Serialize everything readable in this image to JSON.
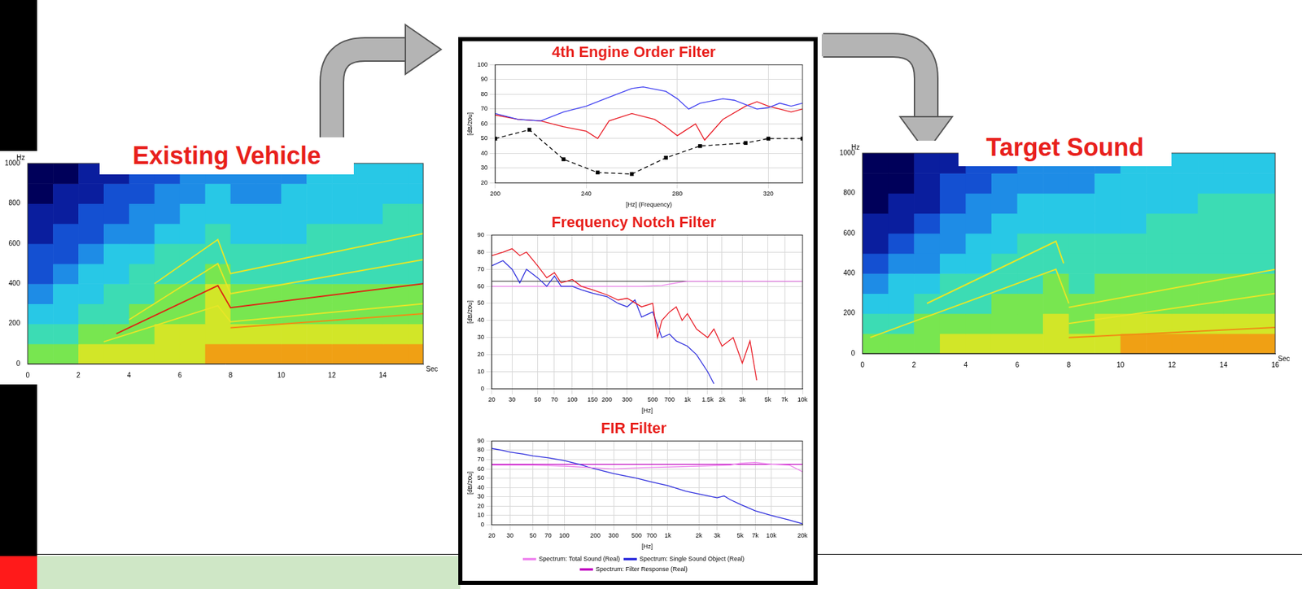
{
  "chart_data": [
    {
      "type": "spectrogram",
      "title": "Existing Vehicle",
      "xlabel": "Sec",
      "ylabel": "Hz",
      "xlim": [
        0,
        15.6
      ],
      "xticks": [
        0,
        2,
        4,
        6,
        8,
        10,
        12,
        14
      ],
      "ylim": [
        0,
        1000
      ],
      "yticks": [
        0,
        200,
        400,
        600,
        800,
        1000
      ],
      "grid": false,
      "time_bins": [
        0,
        1,
        2,
        3,
        4,
        5,
        6,
        7,
        8,
        9,
        10,
        11,
        12,
        13,
        14,
        15,
        16
      ],
      "freq_bins": [
        0,
        100,
        200,
        300,
        400,
        500,
        600,
        700,
        800,
        900,
        1000
      ],
      "zlim": [
        0,
        9
      ],
      "levels": [
        [
          6,
          6,
          7,
          7,
          7,
          7,
          7,
          8,
          8,
          8,
          8,
          8,
          8,
          8,
          8,
          8
        ],
        [
          5,
          5,
          6,
          6,
          6,
          7,
          7,
          7,
          7,
          7,
          7,
          7,
          7,
          7,
          7,
          7
        ],
        [
          4,
          4,
          5,
          5,
          6,
          6,
          6,
          7,
          6,
          6,
          6,
          6,
          6,
          6,
          6,
          6
        ],
        [
          3,
          4,
          4,
          5,
          5,
          6,
          6,
          7,
          6,
          6,
          6,
          6,
          6,
          6,
          6,
          6
        ],
        [
          2,
          3,
          4,
          4,
          5,
          5,
          5,
          6,
          5,
          5,
          5,
          5,
          5,
          5,
          5,
          5
        ],
        [
          2,
          2,
          3,
          4,
          4,
          5,
          5,
          5,
          5,
          5,
          5,
          5,
          5,
          5,
          5,
          5
        ],
        [
          1,
          2,
          2,
          3,
          3,
          4,
          4,
          5,
          4,
          4,
          4,
          5,
          5,
          5,
          5,
          5
        ],
        [
          1,
          1,
          2,
          2,
          3,
          3,
          4,
          4,
          4,
          4,
          4,
          4,
          4,
          4,
          5,
          5
        ],
        [
          0,
          1,
          1,
          2,
          2,
          3,
          3,
          4,
          3,
          3,
          4,
          4,
          4,
          4,
          4,
          4
        ],
        [
          0,
          0,
          1,
          1,
          2,
          2,
          3,
          3,
          3,
          3,
          3,
          4,
          4,
          4,
          4,
          4
        ]
      ],
      "series": [
        {
          "color": "#dc2814",
          "x": [
            3.5,
            7.5,
            8,
            15.6
          ],
          "values": [
            150,
            390,
            280,
            400
          ]
        },
        {
          "color": "#e6e628",
          "x": [
            3,
            7.5,
            8,
            15.6
          ],
          "values": [
            110,
            290,
            210,
            300
          ]
        },
        {
          "color": "#e6e628",
          "x": [
            4,
            7.5,
            8,
            15.6
          ],
          "values": [
            220,
            500,
            350,
            520
          ]
        },
        {
          "color": "#e6e628",
          "x": [
            5,
            7.5,
            8,
            15.6
          ],
          "values": [
            400,
            620,
            450,
            650
          ]
        },
        {
          "color": "#f08c14",
          "x": [
            8,
            15.6
          ],
          "values": [
            180,
            250
          ]
        }
      ]
    },
    {
      "type": "line",
      "title": "4th Engine Order Filter",
      "xlabel": "[Hz] (Frequency)",
      "ylabel": "[dB/20u]",
      "xlim": [
        200,
        335
      ],
      "xticks": [
        200,
        240,
        280,
        320
      ],
      "ylim": [
        20,
        100
      ],
      "yticks": [
        20,
        30,
        40,
        50,
        60,
        70,
        80,
        90,
        100
      ],
      "grid": true,
      "series": [
        {
          "color": "#3c3cf0",
          "x": [
            200,
            210,
            220,
            230,
            240,
            250,
            260,
            265,
            275,
            280,
            285,
            290,
            300,
            305,
            315,
            320,
            325,
            330,
            335
          ],
          "values": [
            67,
            63,
            62,
            68,
            72,
            78,
            84,
            85,
            82,
            77,
            70,
            74,
            77,
            76,
            70,
            71,
            74,
            72,
            74
          ]
        },
        {
          "color": "#e8141e",
          "x": [
            200,
            210,
            220,
            230,
            240,
            245,
            250,
            260,
            270,
            275,
            280,
            283,
            288,
            292,
            300,
            310,
            315,
            320,
            330,
            335
          ],
          "values": [
            66,
            63,
            62,
            58,
            55,
            50,
            62,
            67,
            63,
            58,
            52,
            55,
            60,
            49,
            63,
            72,
            75,
            72,
            68,
            70
          ]
        },
        {
          "color": "#000000",
          "marker": "square",
          "line_style": "dashed",
          "x": [
            200,
            215,
            230,
            245,
            260,
            275,
            290,
            310,
            320,
            335
          ],
          "values": [
            50,
            56,
            36,
            27,
            26,
            37,
            45,
            47,
            50,
            50
          ]
        }
      ]
    },
    {
      "type": "line",
      "title": "Frequency Notch Filter",
      "xlabel": "[Hz]",
      "ylabel": "[dB/20u]",
      "log": "x",
      "xlim": [
        20,
        10000
      ],
      "xticks": [
        20,
        30,
        50,
        70,
        100,
        150,
        200,
        300,
        500,
        700,
        {
          "value": 1000,
          "label": "1k"
        },
        {
          "value": 1500,
          "label": "1.5k"
        },
        {
          "value": 2000,
          "label": "2k"
        },
        {
          "value": 3000,
          "label": "3k"
        },
        {
          "value": 5000,
          "label": "5k"
        },
        {
          "value": 7000,
          "label": "7k"
        },
        {
          "value": 10000,
          "label": "10k"
        }
      ],
      "ylim": [
        0,
        90
      ],
      "yticks": [
        0,
        10,
        20,
        30,
        40,
        50,
        60,
        70,
        80,
        90
      ],
      "grid": true,
      "series": [
        {
          "color": "#e8141e",
          "x": [
            20,
            25,
            30,
            35,
            40,
            50,
            60,
            70,
            80,
            100,
            120,
            150,
            200,
            250,
            300,
            400,
            500,
            550,
            600,
            700,
            800,
            900,
            1000,
            1200,
            1500,
            1700,
            2000,
            2500,
            3000,
            3500,
            4000
          ],
          "values": [
            78,
            80,
            82,
            78,
            80,
            72,
            65,
            68,
            62,
            64,
            60,
            58,
            55,
            52,
            53,
            48,
            50,
            30,
            40,
            45,
            48,
            40,
            44,
            35,
            30,
            35,
            25,
            30,
            15,
            28,
            5
          ]
        },
        {
          "color": "#2828dc",
          "x": [
            20,
            25,
            30,
            35,
            40,
            50,
            60,
            70,
            80,
            100,
            120,
            150,
            200,
            250,
            300,
            350,
            400,
            500,
            600,
            700,
            800,
            1000,
            1200,
            1500,
            1700
          ],
          "values": [
            72,
            75,
            70,
            62,
            70,
            65,
            60,
            66,
            60,
            60,
            58,
            56,
            54,
            50,
            48,
            52,
            42,
            45,
            30,
            32,
            28,
            25,
            20,
            10,
            3
          ]
        },
        {
          "color": "#ee82ee",
          "x": [
            20,
            400,
            600,
            800,
            1000,
            10000
          ],
          "values": [
            60,
            60,
            60.5,
            62,
            63,
            63
          ]
        },
        {
          "color": "#505050",
          "x": [
            20,
            10000
          ],
          "values": [
            63,
            63
          ]
        }
      ]
    },
    {
      "type": "line",
      "title": "FIR Filter",
      "xlabel": "[Hz]",
      "ylabel": "[dB/20u]",
      "log": "x",
      "legend": "bottom",
      "xlim": [
        20,
        20000
      ],
      "xticks": [
        20,
        30,
        50,
        70,
        100,
        200,
        300,
        500,
        700,
        {
          "value": 1000,
          "label": "1k"
        },
        {
          "value": 2000,
          "label": "2k"
        },
        {
          "value": 3000,
          "label": "3k"
        },
        {
          "value": 5000,
          "label": "5k"
        },
        {
          "value": 7000,
          "label": "7k"
        },
        {
          "value": 10000,
          "label": "10k"
        },
        {
          "value": 20000,
          "label": "20k"
        }
      ],
      "ylim": [
        0,
        90
      ],
      "yticks": [
        0,
        10,
        20,
        30,
        40,
        50,
        60,
        70,
        80,
        90
      ],
      "grid": true,
      "series": [
        {
          "name": "Spectrum: Total Sound (Real)",
          "color": "#ee82ee",
          "x": [
            20,
            50,
            100,
            200,
            300,
            500,
            1000,
            2000,
            4000,
            5000,
            7000,
            10000,
            15000,
            20000
          ],
          "values": [
            64,
            64,
            63,
            61,
            60,
            61,
            62,
            63,
            64,
            66,
            67,
            65,
            64,
            57
          ]
        },
        {
          "name": "Spectrum: Single Sound Object (Real)",
          "color": "#2828dc",
          "x": [
            20,
            25,
            30,
            40,
            50,
            70,
            100,
            150,
            170,
            200,
            300,
            500,
            700,
            1000,
            1500,
            2000,
            3000,
            3500,
            4000,
            5000,
            7000,
            10000,
            15000,
            20000
          ],
          "values": [
            82,
            80,
            78,
            76,
            74,
            72,
            69,
            64,
            62,
            60,
            55,
            50,
            46,
            42,
            36,
            33,
            29,
            31,
            27,
            22,
            15,
            10,
            5,
            1
          ]
        },
        {
          "name": "Spectrum: Filter Response (Real)",
          "color": "#c000c0",
          "x": [
            20,
            20000
          ],
          "values": [
            65,
            65
          ]
        }
      ]
    },
    {
      "type": "spectrogram",
      "title": "Target Sound",
      "xlabel": "Sec",
      "ylabel": "Hz",
      "xlim": [
        0,
        16
      ],
      "xticks": [
        0,
        2,
        4,
        6,
        8,
        10,
        12,
        14,
        16
      ],
      "ylim": [
        0,
        1000
      ],
      "yticks": [
        0,
        200,
        400,
        600,
        800,
        1000
      ],
      "grid": false,
      "time_bins": [
        0,
        1,
        2,
        3,
        4,
        5,
        6,
        7,
        8,
        9,
        10,
        11,
        12,
        13,
        14,
        15,
        16
      ],
      "freq_bins": [
        0,
        100,
        200,
        300,
        400,
        500,
        600,
        700,
        800,
        900,
        1000
      ],
      "zlim": [
        0,
        9
      ],
      "levels": [
        [
          6,
          6,
          6,
          7,
          7,
          7,
          7,
          7,
          7,
          7,
          8,
          8,
          8,
          8,
          8,
          8
        ],
        [
          5,
          5,
          6,
          6,
          6,
          6,
          6,
          7,
          6,
          7,
          7,
          7,
          7,
          7,
          7,
          7
        ],
        [
          4,
          4,
          5,
          5,
          5,
          6,
          6,
          6,
          6,
          6,
          6,
          6,
          6,
          6,
          6,
          6
        ],
        [
          3,
          4,
          4,
          5,
          5,
          5,
          5,
          6,
          5,
          6,
          6,
          6,
          6,
          6,
          6,
          6
        ],
        [
          2,
          3,
          3,
          4,
          4,
          5,
          5,
          5,
          5,
          5,
          5,
          5,
          5,
          5,
          5,
          5
        ],
        [
          1,
          2,
          3,
          3,
          4,
          4,
          5,
          5,
          5,
          5,
          5,
          5,
          5,
          5,
          5,
          5
        ],
        [
          1,
          1,
          2,
          3,
          3,
          4,
          4,
          4,
          4,
          4,
          4,
          5,
          5,
          5,
          5,
          5
        ],
        [
          0,
          1,
          1,
          2,
          3,
          3,
          4,
          4,
          4,
          4,
          4,
          4,
          4,
          5,
          5,
          5
        ],
        [
          0,
          0,
          1,
          2,
          2,
          3,
          3,
          3,
          3,
          4,
          4,
          4,
          4,
          4,
          4,
          4
        ],
        [
          0,
          0,
          1,
          1,
          2,
          2,
          3,
          3,
          3,
          3,
          4,
          4,
          4,
          4,
          4,
          4
        ]
      ],
      "series": [
        {
          "color": "#e6e628",
          "x": [
            0.3,
            7.5,
            8
          ],
          "values": [
            80,
            420,
            250
          ]
        },
        {
          "color": "#e6e628",
          "x": [
            2.5,
            7.5,
            7.8
          ],
          "values": [
            250,
            560,
            450
          ]
        },
        {
          "color": "#e6e628",
          "x": [
            8,
            16
          ],
          "values": [
            230,
            420
          ]
        },
        {
          "color": "#e6e628",
          "x": [
            8,
            16
          ],
          "values": [
            150,
            300
          ]
        },
        {
          "color": "#f08c14",
          "x": [
            8,
            16
          ],
          "values": [
            80,
            130
          ]
        }
      ]
    }
  ]
}
